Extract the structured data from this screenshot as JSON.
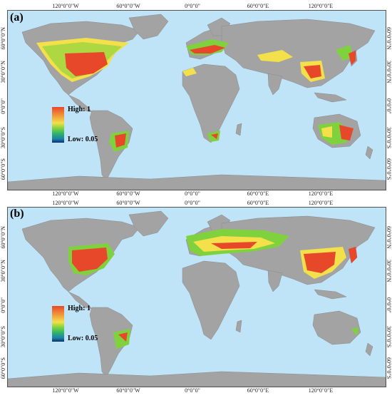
{
  "panels": [
    {
      "label": "(a)",
      "legend": {
        "high": "High: 1",
        "low": "Low: 0.05"
      },
      "lon_ticks": [
        "120°0\"0\"W",
        "60°0\"0\"W",
        "0°0\"0\"",
        "60°0\"0\"E",
        "120°0\"0\"E"
      ],
      "lat_ticks": [
        "60°0\"0\"N",
        "30°0\"0\"N",
        "0°0\"0\"",
        "30°0\"0\"S",
        "60°0\"0\"S"
      ]
    },
    {
      "label": "(b)",
      "legend": {
        "high": "High: 1",
        "low": "Low: 0.05"
      },
      "lon_ticks": [
        "120°0\"0\"W",
        "60°0\"0\"W",
        "0°0\"0\"",
        "60°0\"0\"E",
        "120°0\"0\"E"
      ],
      "lat_ticks": [
        "60°0\"0\"N",
        "30°0\"0\"N",
        "0°0\"0\"",
        "30°0\"0\"S",
        "60°0\"0\"S"
      ]
    }
  ],
  "colors": {
    "ocean": "#bfe3f7",
    "land": "#a3a3a3",
    "high": "#e8482a",
    "mid": "#f3e04a",
    "low": "#1b7fa8"
  }
}
